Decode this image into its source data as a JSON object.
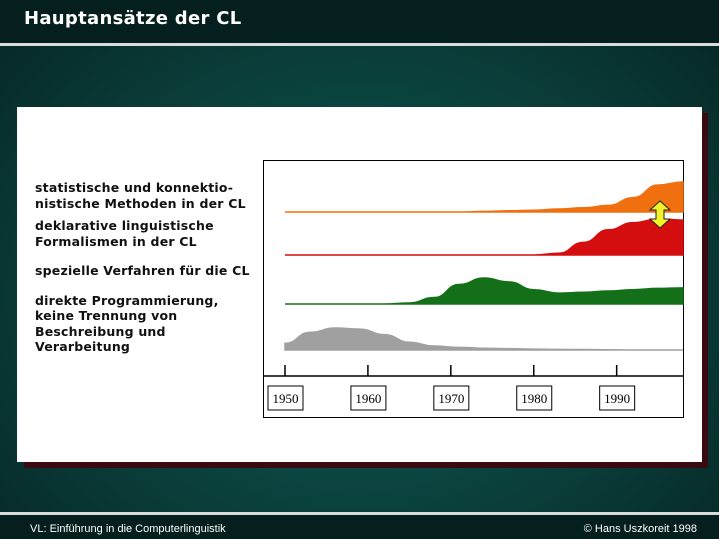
{
  "header": {
    "title": "Hauptansätze der CL"
  },
  "footer": {
    "left": "VL: Einführung in die Computerlinguistik",
    "right": "© Hans Uszkoreit 1998"
  },
  "colors": {
    "statistical": "#f07010",
    "declarative": "#d40e0e",
    "special": "#137018",
    "direct": "#a0a0a0",
    "arrow": "#f2f228"
  },
  "chart_data": {
    "type": "area",
    "x": [
      1950,
      1953,
      1956,
      1959,
      1962,
      1965,
      1968,
      1971,
      1974,
      1977,
      1980,
      1983,
      1986,
      1989,
      1992,
      1995,
      1998
    ],
    "xlim": [
      1950,
      1998
    ],
    "xticks": [
      "1950",
      "1960",
      "1970",
      "1980",
      "1990"
    ],
    "series": [
      {
        "name": "statistische und konnektio-\nnistische Methoden in der CL",
        "values": [
          0,
          0,
          0,
          0,
          0,
          0,
          0,
          0,
          0.02,
          0.04,
          0.06,
          0.1,
          0.14,
          0.22,
          0.48,
          0.9,
          1.0
        ]
      },
      {
        "name": "deklarative linguistische\nFormalismen in der CL",
        "values": [
          0,
          0,
          0,
          0,
          0,
          0,
          0,
          0,
          0,
          0,
          0,
          0.05,
          0.35,
          0.7,
          0.9,
          1.0,
          0.97
        ]
      },
      {
        "name": "spezielle Verfahren für die CL",
        "values": [
          0,
          0,
          0,
          0,
          0,
          0.04,
          0.25,
          0.75,
          1.0,
          0.85,
          0.55,
          0.42,
          0.45,
          0.5,
          0.55,
          0.6,
          0.62
        ]
      },
      {
        "name": "direkte Programmierung,\nkeine Trennung von\nBeschreibung und\nVerarbeitung",
        "values": [
          0.3,
          0.8,
          1.0,
          0.95,
          0.7,
          0.35,
          0.18,
          0.12,
          0.08,
          0.06,
          0.04,
          0.03,
          0.02,
          0.01,
          0,
          0,
          0
        ]
      }
    ]
  }
}
